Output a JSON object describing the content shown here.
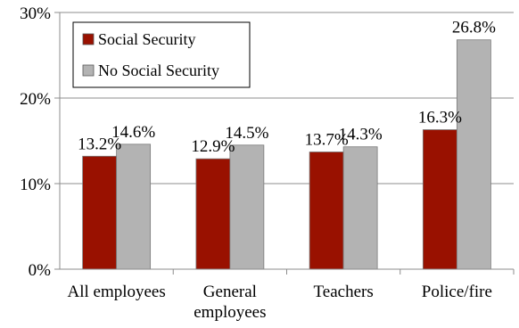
{
  "chart_data": {
    "type": "bar",
    "categories": [
      [
        "All employees"
      ],
      [
        "General",
        "employees"
      ],
      [
        "Teachers"
      ],
      [
        "Police/fire"
      ]
    ],
    "series": [
      {
        "name": "Social Security",
        "color": "#991100",
        "values": [
          13.2,
          12.9,
          13.7,
          16.3
        ],
        "labels": [
          "13.2%",
          "12.9%",
          "13.7%",
          "16.3%"
        ]
      },
      {
        "name": "No Social Security",
        "color": "#b3b3b3",
        "values": [
          14.6,
          14.5,
          14.3,
          26.8
        ],
        "labels": [
          "14.6%",
          "14.5%",
          "14.3%",
          "26.8%"
        ]
      }
    ],
    "ylim": [
      0,
      30
    ],
    "yticks": [
      0,
      10,
      20,
      30
    ],
    "ytick_labels": [
      "0%",
      "10%",
      "20%",
      "30%"
    ],
    "legend_position": "top-left",
    "grid": "horizontal"
  }
}
